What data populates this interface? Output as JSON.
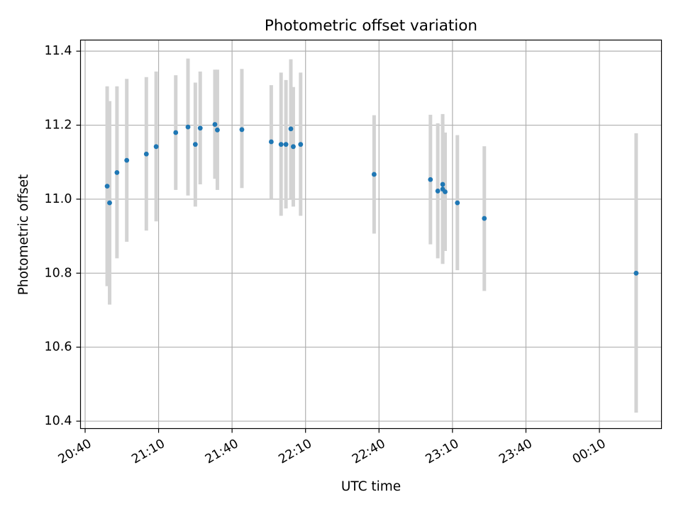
{
  "chart_data": {
    "type": "scatter",
    "title": "Photometric offset variation",
    "xlabel": "UTC time",
    "ylabel": "Photometric offset",
    "x_ticks": [
      "20:40",
      "21:10",
      "21:40",
      "22:10",
      "22:40",
      "23:10",
      "23:40",
      "00:10"
    ],
    "y_ticks": [
      "10.4",
      "10.6",
      "10.8",
      "11.0",
      "11.2",
      "11.4"
    ],
    "xlim": [
      "20:40",
      "00:44"
    ],
    "ylim": [
      10.38,
      11.43
    ],
    "grid": true,
    "colors": {
      "points": "#1f77b4",
      "errorbars": "#d3d3d3",
      "grid": "#b0b0b0"
    },
    "series": [
      {
        "points": [
          {
            "x": "20:49",
            "y": 11.035,
            "low": 10.765,
            "high": 11.305
          },
          {
            "x": "20:50",
            "y": 10.99,
            "low": 10.715,
            "high": 11.265
          },
          {
            "x": "20:53",
            "y": 11.072,
            "low": 10.84,
            "high": 11.305
          },
          {
            "x": "20:57",
            "y": 11.105,
            "low": 10.885,
            "high": 11.325
          },
          {
            "x": "21:05",
            "y": 11.122,
            "low": 10.915,
            "high": 11.33
          },
          {
            "x": "21:09",
            "y": 11.142,
            "low": 10.94,
            "high": 11.345
          },
          {
            "x": "21:17",
            "y": 11.18,
            "low": 11.025,
            "high": 11.335
          },
          {
            "x": "21:22",
            "y": 11.195,
            "low": 11.01,
            "high": 11.38
          },
          {
            "x": "21:25",
            "y": 11.148,
            "low": 10.98,
            "high": 11.315
          },
          {
            "x": "21:27",
            "y": 11.192,
            "low": 11.04,
            "high": 11.345
          },
          {
            "x": "21:33",
            "y": 11.202,
            "low": 11.055,
            "high": 11.35
          },
          {
            "x": "21:34",
            "y": 11.187,
            "low": 11.025,
            "high": 11.35
          },
          {
            "x": "21:44",
            "y": 11.188,
            "low": 11.03,
            "high": 11.352
          },
          {
            "x": "21:56",
            "y": 11.155,
            "low": 11.0,
            "high": 11.308
          },
          {
            "x": "22:00",
            "y": 11.148,
            "low": 10.955,
            "high": 11.342
          },
          {
            "x": "22:02",
            "y": 11.148,
            "low": 10.975,
            "high": 11.322
          },
          {
            "x": "22:04",
            "y": 11.19,
            "low": 11.0,
            "high": 11.378
          },
          {
            "x": "22:05",
            "y": 11.142,
            "low": 10.98,
            "high": 11.303
          },
          {
            "x": "22:08",
            "y": 11.148,
            "low": 10.955,
            "high": 11.342
          },
          {
            "x": "22:38",
            "y": 11.067,
            "low": 10.907,
            "high": 11.227
          },
          {
            "x": "23:01",
            "y": 11.053,
            "low": 10.878,
            "high": 11.228
          },
          {
            "x": "23:04",
            "y": 11.022,
            "low": 10.84,
            "high": 11.205
          },
          {
            "x": "23:06",
            "y": 11.04,
            "low": 10.85,
            "high": 11.23
          },
          {
            "x": "23:06",
            "y": 11.027,
            "low": 10.825,
            "high": 11.21
          },
          {
            "x": "23:07",
            "y": 11.02,
            "low": 10.86,
            "high": 11.18
          },
          {
            "x": "23:12",
            "y": 10.99,
            "low": 10.808,
            "high": 11.173
          },
          {
            "x": "23:23",
            "y": 10.948,
            "low": 10.752,
            "high": 11.143
          },
          {
            "x": "00:25",
            "y": 10.8,
            "low": 10.423,
            "high": 11.178
          }
        ]
      }
    ]
  }
}
